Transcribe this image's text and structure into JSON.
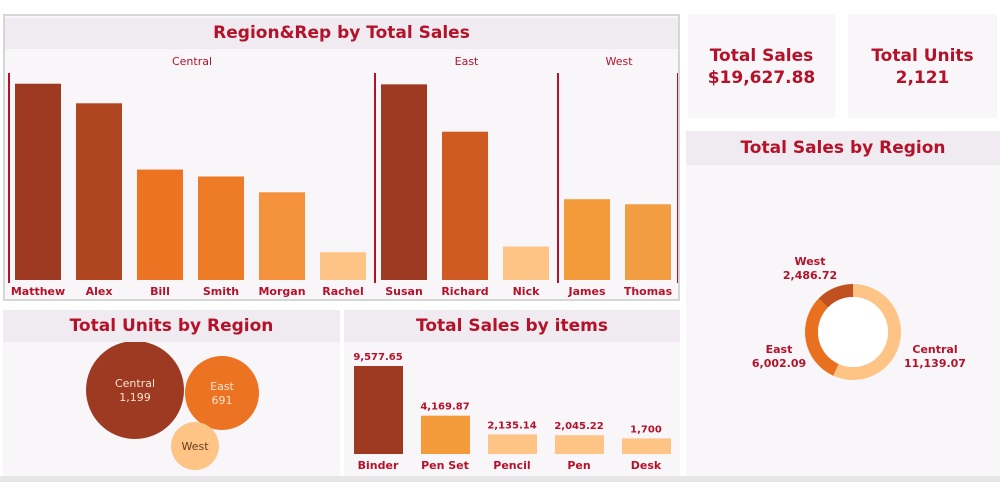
{
  "colors": {
    "title": "#b5122a",
    "dark": "#9e3a21",
    "mid": "#e8701f",
    "light": "#f39a3a",
    "pale": "#fdc486"
  },
  "kpis": [
    {
      "label": "Total Sales",
      "value": "$19,627.88"
    },
    {
      "label": "Total Units",
      "value": "2,121"
    }
  ],
  "chart_data": [
    {
      "type": "bar",
      "title": "Region&Rep by Total Sales",
      "groups": [
        {
          "name": "Central",
          "reps": [
            "Matthew",
            "Alex",
            "Bill",
            "Smith",
            "Morgan",
            "Rachel"
          ],
          "values": [
            3110,
            2800,
            1750,
            1640,
            1390,
            440
          ],
          "colors": [
            "#9e3a21",
            "#b0461f",
            "#ec7322",
            "#ee7c26",
            "#f3923a",
            "#fdc486"
          ]
        },
        {
          "name": "East",
          "reps": [
            "Susan",
            "Richard",
            "Nick"
          ],
          "values": [
            3100,
            2350,
            530
          ],
          "colors": [
            "#9e3a21",
            "#cf5b22",
            "#fdc486"
          ]
        },
        {
          "name": "West",
          "reps": [
            "James",
            "Thomas"
          ],
          "values": [
            1280,
            1200
          ],
          "colors": [
            "#f39a3a",
            "#f39d42"
          ]
        }
      ]
    },
    {
      "type": "bubble",
      "title": "Total Units by Region",
      "items": [
        {
          "label": "Central",
          "value": 1199,
          "value_label": "1,199",
          "color": "#9e3a21"
        },
        {
          "label": "East",
          "value": 691,
          "value_label": "691",
          "color": "#ec7322"
        },
        {
          "label": "West",
          "value": 231,
          "value_label": "",
          "color": "#fdc486"
        }
      ]
    },
    {
      "type": "bar",
      "title": "Total Sales by items",
      "categories": [
        "Binder",
        "Pen Set",
        "Pencil",
        "Pen",
        "Desk"
      ],
      "values": [
        9577.65,
        4169.87,
        2135.14,
        2045.22,
        1700
      ],
      "labels": [
        "9,577.65",
        "4,169.87",
        "2,135.14",
        "2,045.22",
        "1,700"
      ],
      "colors": [
        "#9e3a21",
        "#f39a3a",
        "#fdc486",
        "#fdc486",
        "#fdc486"
      ]
    },
    {
      "type": "pie",
      "title": "Total Sales by Region",
      "slices": [
        {
          "label": "Central",
          "value": 11139.07,
          "value_label": "11,139.07",
          "color": "#fdc486"
        },
        {
          "label": "East",
          "value": 6002.09,
          "value_label": "6,002.09",
          "color": "#e8701f"
        },
        {
          "label": "West",
          "value": 2486.72,
          "value_label": "2,486.72",
          "color": "#c0501f"
        }
      ]
    }
  ]
}
